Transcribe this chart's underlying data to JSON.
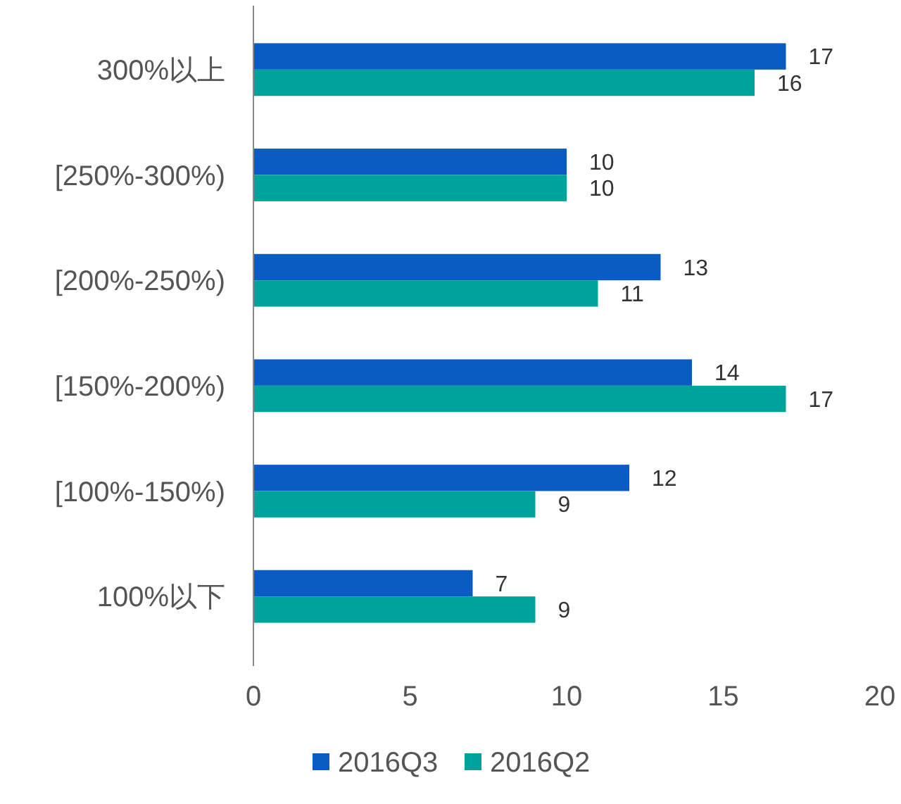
{
  "chart_data": {
    "type": "bar",
    "orientation": "horizontal",
    "categories": [
      "300%以上",
      "[250%-300%)",
      "[200%-250%)",
      "[150%-200%)",
      "[100%-150%)",
      "100%以下"
    ],
    "series": [
      {
        "name": "2016Q3",
        "color": "#0a5cc2",
        "values": [
          17,
          10,
          13,
          14,
          12,
          7
        ]
      },
      {
        "name": "2016Q2",
        "color": "#00a39b",
        "values": [
          16,
          10,
          11,
          17,
          9,
          9
        ]
      }
    ],
    "xlim": [
      0,
      20
    ],
    "xticks": [
      0,
      5,
      10,
      15,
      20
    ],
    "data_labels": true,
    "legend": "bottom",
    "grid": false
  }
}
